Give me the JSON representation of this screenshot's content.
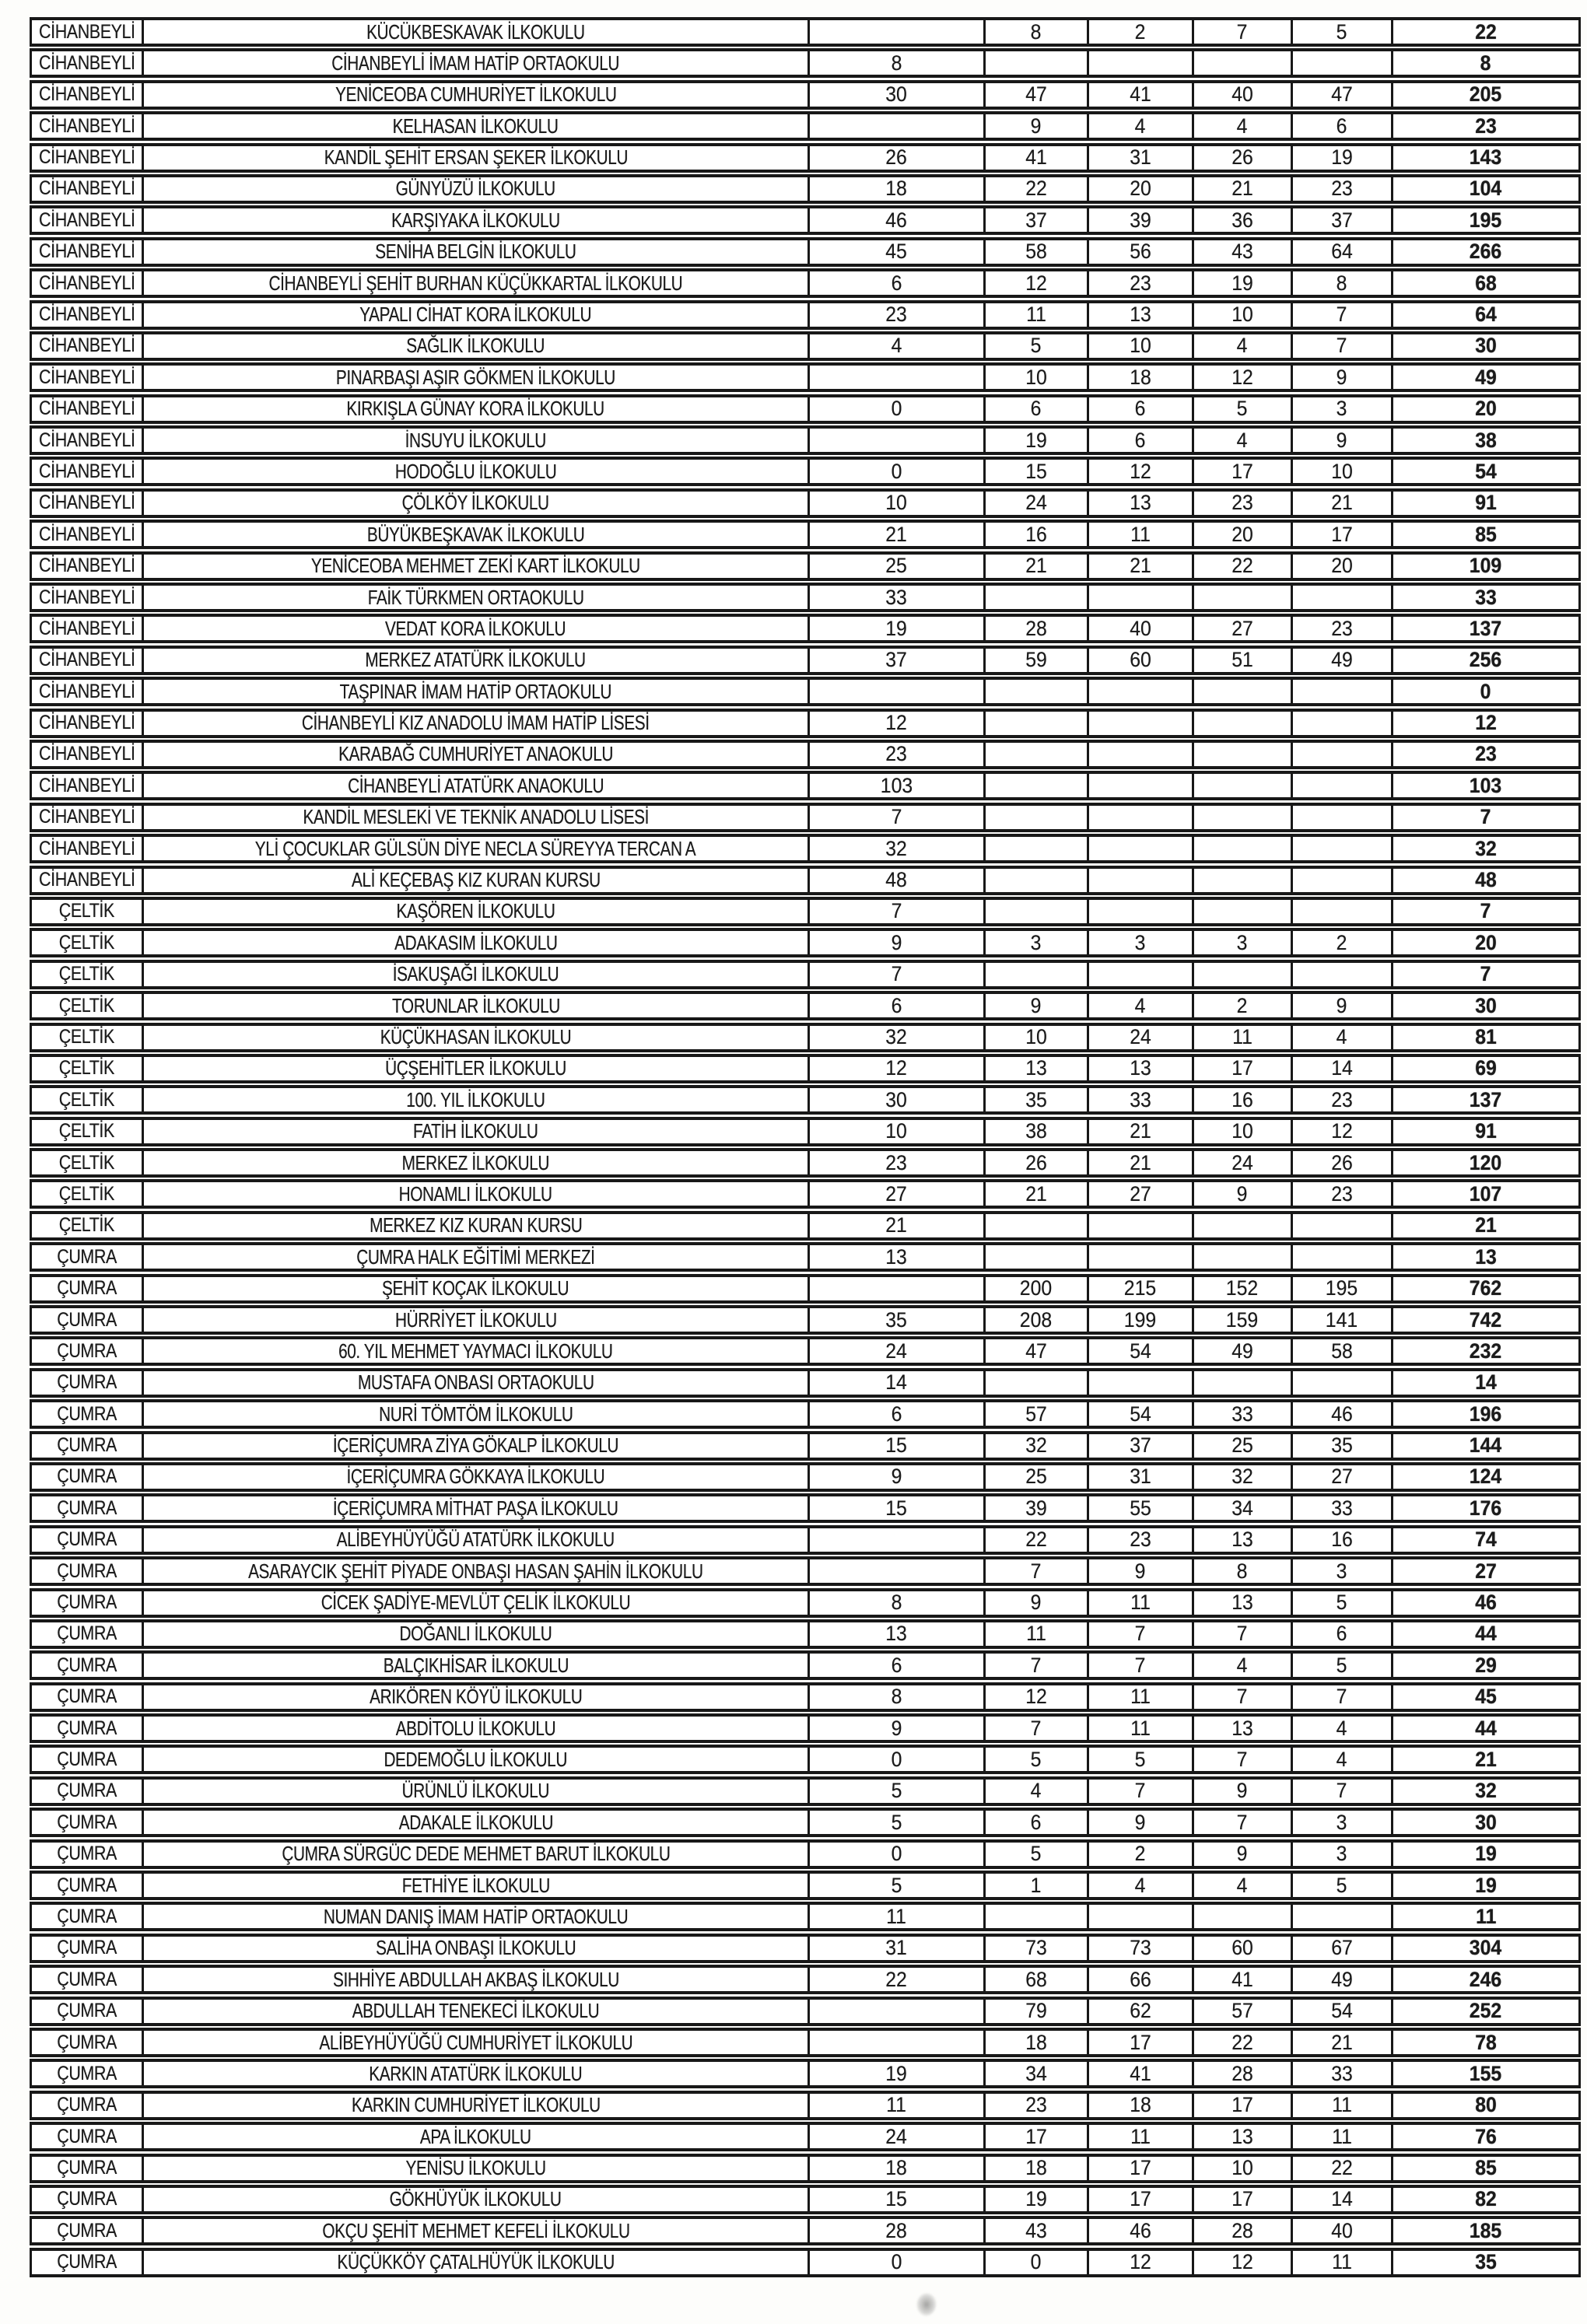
{
  "table": {
    "rows": [
      [
        "CİHANBEYLİ",
        "KÜCÜKBESKAVAK İLKOKULU",
        "",
        "8",
        "2",
        "7",
        "5",
        "22"
      ],
      [
        "CİHANBEYLİ",
        "CİHANBEYLİ İMAM HATİP ORTAOKULU",
        "8",
        "",
        "",
        "",
        "",
        "8"
      ],
      [
        "CİHANBEYLİ",
        "YENİCEOBA CUMHURİYET İLKOKULU",
        "30",
        "47",
        "41",
        "40",
        "47",
        "205"
      ],
      [
        "CİHANBEYLİ",
        "KELHASAN İLKOKULU",
        "",
        "9",
        "4",
        "4",
        "6",
        "23"
      ],
      [
        "CİHANBEYLİ",
        "KANDİL ŞEHİT ERSAN ŞEKER İLKOKULU",
        "26",
        "41",
        "31",
        "26",
        "19",
        "143"
      ],
      [
        "CİHANBEYLİ",
        "GÜNYÜZÜ İLKOKULU",
        "18",
        "22",
        "20",
        "21",
        "23",
        "104"
      ],
      [
        "CİHANBEYLİ",
        "KARŞIYAKA İLKOKULU",
        "46",
        "37",
        "39",
        "36",
        "37",
        "195"
      ],
      [
        "CİHANBEYLİ",
        "SENİHA BELGİN İLKOKULU",
        "45",
        "58",
        "56",
        "43",
        "64",
        "266"
      ],
      [
        "CİHANBEYLİ",
        "CİHANBEYLİ ŞEHİT BURHAN KÜÇÜKKARTAL İLKOKULU",
        "6",
        "12",
        "23",
        "19",
        "8",
        "68"
      ],
      [
        "CİHANBEYLİ",
        "YAPALI CİHAT KORA İLKOKULU",
        "23",
        "11",
        "13",
        "10",
        "7",
        "64"
      ],
      [
        "CİHANBEYLİ",
        "SAĞLIK İLKOKULU",
        "4",
        "5",
        "10",
        "4",
        "7",
        "30"
      ],
      [
        "CİHANBEYLİ",
        "PINARBAŞI AŞIR GÖKMEN İLKOKULU",
        "",
        "10",
        "18",
        "12",
        "9",
        "49"
      ],
      [
        "CİHANBEYLİ",
        "KIRKIŞLA GÜNAY KORA İLKOKULU",
        "0",
        "6",
        "6",
        "5",
        "3",
        "20"
      ],
      [
        "CİHANBEYLİ",
        "İNSUYU İLKOKULU",
        "",
        "19",
        "6",
        "4",
        "9",
        "38"
      ],
      [
        "CİHANBEYLİ",
        "HODOĞLU İLKOKULU",
        "0",
        "15",
        "12",
        "17",
        "10",
        "54"
      ],
      [
        "CİHANBEYLİ",
        "ÇÖLKÖY İLKOKULU",
        "10",
        "24",
        "13",
        "23",
        "21",
        "91"
      ],
      [
        "CİHANBEYLİ",
        "BÜYÜKBEŞKAVAK İLKOKULU",
        "21",
        "16",
        "11",
        "20",
        "17",
        "85"
      ],
      [
        "CİHANBEYLİ",
        "YENİCEOBA MEHMET ZEKİ KART İLKOKULU",
        "25",
        "21",
        "21",
        "22",
        "20",
        "109"
      ],
      [
        "CİHANBEYLİ",
        "FAİK TÜRKMEN ORTAOKULU",
        "33",
        "",
        "",
        "",
        "",
        "33"
      ],
      [
        "CİHANBEYLİ",
        "VEDAT KORA İLKOKULU",
        "19",
        "28",
        "40",
        "27",
        "23",
        "137"
      ],
      [
        "CİHANBEYLİ",
        "MERKEZ ATATÜRK İLKOKULU",
        "37",
        "59",
        "60",
        "51",
        "49",
        "256"
      ],
      [
        "CİHANBEYLİ",
        "TAŞPINAR İMAM HATİP ORTAOKULU",
        "",
        "",
        "",
        "",
        "",
        "0"
      ],
      [
        "CİHANBEYLİ",
        "CİHANBEYLİ KIZ ANADOLU İMAM HATİP LİSESİ",
        "12",
        "",
        "",
        "",
        "",
        "12"
      ],
      [
        "CİHANBEYLİ",
        "KARABAĞ CUMHURİYET ANAOKULU",
        "23",
        "",
        "",
        "",
        "",
        "23"
      ],
      [
        "CİHANBEYLİ",
        "CİHANBEYLİ ATATÜRK ANAOKULU",
        "103",
        "",
        "",
        "",
        "",
        "103"
      ],
      [
        "CİHANBEYLİ",
        "KANDİL MESLEKİ VE TEKNİK ANADOLU LİSESİ",
        "7",
        "",
        "",
        "",
        "",
        "7"
      ],
      [
        "CİHANBEYLİ",
        "YLİ ÇOCUKLAR GÜLSÜN DİYE NECLA SÜREYYA TERCAN A",
        "32",
        "",
        "",
        "",
        "",
        "32"
      ],
      [
        "CİHANBEYLİ",
        "ALİ KEÇEBAŞ KIZ KURAN KURSU",
        "48",
        "",
        "",
        "",
        "",
        "48"
      ],
      [
        "ÇELTİK",
        "KAŞÖREN İLKOKULU",
        "7",
        "",
        "",
        "",
        "",
        "7"
      ],
      [
        "ÇELTİK",
        "ADAKASIM İLKOKULU",
        "9",
        "3",
        "3",
        "3",
        "2",
        "20"
      ],
      [
        "ÇELTİK",
        "İSAKUŞAĞI İLKOKULU",
        "7",
        "",
        "",
        "",
        "",
        "7"
      ],
      [
        "ÇELTİK",
        "TORUNLAR İLKOKULU",
        "6",
        "9",
        "4",
        "2",
        "9",
        "30"
      ],
      [
        "ÇELTİK",
        "KÜÇÜKHASAN İLKOKULU",
        "32",
        "10",
        "24",
        "11",
        "4",
        "81"
      ],
      [
        "ÇELTİK",
        "ÜÇŞEHİTLER İLKOKULU",
        "12",
        "13",
        "13",
        "17",
        "14",
        "69"
      ],
      [
        "ÇELTİK",
        "100. YIL İLKOKULU",
        "30",
        "35",
        "33",
        "16",
        "23",
        "137"
      ],
      [
        "ÇELTİK",
        "FATİH İLKOKULU",
        "10",
        "38",
        "21",
        "10",
        "12",
        "91"
      ],
      [
        "ÇELTİK",
        "MERKEZ İLKOKULU",
        "23",
        "26",
        "21",
        "24",
        "26",
        "120"
      ],
      [
        "ÇELTİK",
        "HONAMLI İLKOKULU",
        "27",
        "21",
        "27",
        "9",
        "23",
        "107"
      ],
      [
        "ÇELTİK",
        "MERKEZ KIZ KURAN KURSU",
        "21",
        "",
        "",
        "",
        "",
        "21"
      ],
      [
        "ÇUMRA",
        "ÇUMRA HALK EĞİTİMİ MERKEZİ",
        "13",
        "",
        "",
        "",
        "",
        "13"
      ],
      [
        "ÇUMRA",
        "ŞEHİT KOÇAK İLKOKULU",
        "",
        "200",
        "215",
        "152",
        "195",
        "762"
      ],
      [
        "ÇUMRA",
        "HÜRRİYET İLKOKULU",
        "35",
        "208",
        "199",
        "159",
        "141",
        "742"
      ],
      [
        "ÇUMRA",
        "60. YIL MEHMET YAYMACI İLKOKULU",
        "24",
        "47",
        "54",
        "49",
        "58",
        "232"
      ],
      [
        "ÇUMRA",
        "MUSTAFA ONBASI ORTAOKULU",
        "14",
        "",
        "",
        "",
        "",
        "14"
      ],
      [
        "ÇUMRA",
        "NURİ TÖMTÖM İLKOKULU",
        "6",
        "57",
        "54",
        "33",
        "46",
        "196"
      ],
      [
        "ÇUMRA",
        "İÇERİÇUMRA ZİYA GÖKALP İLKOKULU",
        "15",
        "32",
        "37",
        "25",
        "35",
        "144"
      ],
      [
        "ÇUMRA",
        "İÇERİÇUMRA GÖKKAYA İLKOKULU",
        "9",
        "25",
        "31",
        "32",
        "27",
        "124"
      ],
      [
        "ÇUMRA",
        "İÇERİÇUMRA MİTHAT PAŞA İLKOKULU",
        "15",
        "39",
        "55",
        "34",
        "33",
        "176"
      ],
      [
        "ÇUMRA",
        "ALİBEYHÜYÜĞÜ ATATÜRK İLKOKULU",
        "",
        "22",
        "23",
        "13",
        "16",
        "74"
      ],
      [
        "ÇUMRA",
        "ASARAYCIK ŞEHİT PİYADE ONBAŞI HASAN ŞAHİN İLKOKULU",
        "",
        "7",
        "9",
        "8",
        "3",
        "27"
      ],
      [
        "ÇUMRA",
        "CİCEK ŞADİYE-MEVLÜT ÇELİK İLKOKULU",
        "8",
        "9",
        "11",
        "13",
        "5",
        "46"
      ],
      [
        "ÇUMRA",
        "DOĞANLI İLKOKULU",
        "13",
        "11",
        "7",
        "7",
        "6",
        "44"
      ],
      [
        "ÇUMRA",
        "BALÇIKHİSAR İLKOKULU",
        "6",
        "7",
        "7",
        "4",
        "5",
        "29"
      ],
      [
        "ÇUMRA",
        "ARIKÖREN KÖYÜ İLKOKULU",
        "8",
        "12",
        "11",
        "7",
        "7",
        "45"
      ],
      [
        "ÇUMRA",
        "ABDİTOLU İLKOKULU",
        "9",
        "7",
        "11",
        "13",
        "4",
        "44"
      ],
      [
        "ÇUMRA",
        "DEDEMOĞLU İLKOKULU",
        "0",
        "5",
        "5",
        "7",
        "4",
        "21"
      ],
      [
        "ÇUMRA",
        "ÜRÜNLÜ İLKOKULU",
        "5",
        "4",
        "7",
        "9",
        "7",
        "32"
      ],
      [
        "ÇUMRA",
        "ADAKALE İLKOKULU",
        "5",
        "6",
        "9",
        "7",
        "3",
        "30"
      ],
      [
        "ÇUMRA",
        "ÇUMRA SÜRGÜC DEDE MEHMET BARUT İLKOKULU",
        "0",
        "5",
        "2",
        "9",
        "3",
        "19"
      ],
      [
        "ÇUMRA",
        "FETHİYE İLKOKULU",
        "5",
        "1",
        "4",
        "4",
        "5",
        "19"
      ],
      [
        "ÇUMRA",
        "NUMAN DANIŞ İMAM HATİP ORTAOKULU",
        "11",
        "",
        "",
        "",
        "",
        "11"
      ],
      [
        "ÇUMRA",
        "SALİHA ONBAŞI İLKOKULU",
        "31",
        "73",
        "73",
        "60",
        "67",
        "304"
      ],
      [
        "ÇUMRA",
        "SIHHİYE ABDULLAH AKBAŞ İLKOKULU",
        "22",
        "68",
        "66",
        "41",
        "49",
        "246"
      ],
      [
        "ÇUMRA",
        "ABDULLAH TENEKECİ İLKOKULU",
        "",
        "79",
        "62",
        "57",
        "54",
        "252"
      ],
      [
        "ÇUMRA",
        "ALİBEYHÜYÜĞÜ CUMHURİYET İLKOKULU",
        "",
        "18",
        "17",
        "22",
        "21",
        "78"
      ],
      [
        "ÇUMRA",
        "KARKIN ATATÜRK İLKOKULU",
        "19",
        "34",
        "41",
        "28",
        "33",
        "155"
      ],
      [
        "ÇUMRA",
        "KARKIN CUMHURİYET İLKOKULU",
        "11",
        "23",
        "18",
        "17",
        "11",
        "80"
      ],
      [
        "ÇUMRA",
        "APA İLKOKULU",
        "24",
        "17",
        "11",
        "13",
        "11",
        "76"
      ],
      [
        "ÇUMRA",
        "YENİSU İLKOKULU",
        "18",
        "18",
        "17",
        "10",
        "22",
        "85"
      ],
      [
        "ÇUMRA",
        "GÖKHÜYÜK İLKOKULU",
        "15",
        "19",
        "17",
        "17",
        "14",
        "82"
      ],
      [
        "ÇUMRA",
        "OKÇU ŞEHİT MEHMET KEFELİ İLKOKULU",
        "28",
        "43",
        "46",
        "28",
        "40",
        "185"
      ],
      [
        "ÇUMRA",
        "KÜÇÜKKÖY ÇATALHÜYÜK İLKOKULU",
        "0",
        "0",
        "12",
        "12",
        "11",
        "35"
      ]
    ]
  }
}
